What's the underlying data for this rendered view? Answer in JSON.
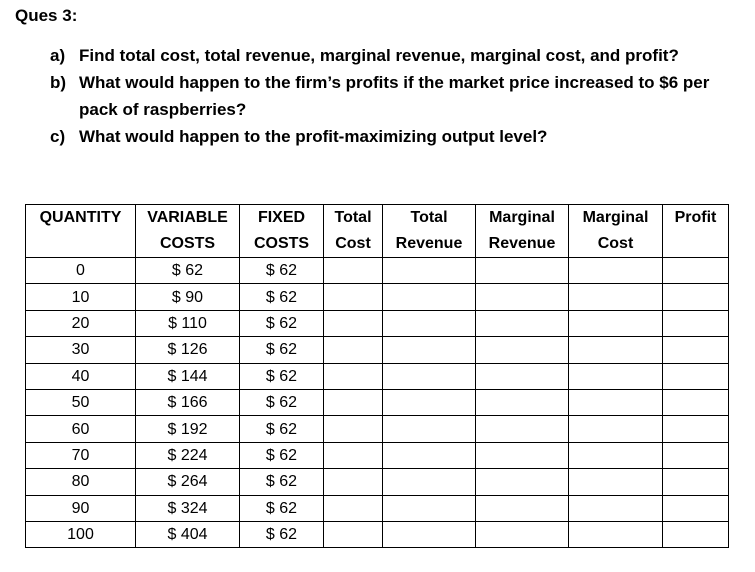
{
  "heading": "Ques 3:",
  "questions": [
    {
      "marker": "a)",
      "text": "Find total cost, total revenue, marginal revenue, marginal cost, and profit?"
    },
    {
      "marker": "b)",
      "text": "What would happen to the firm’s profits if the market price increased to $6 per pack of raspberries?"
    },
    {
      "marker": "c)",
      "text": "What would happen to the profit-maximizing output level?"
    }
  ],
  "table": {
    "headers": [
      {
        "line1": "QUANTITY",
        "line2": ""
      },
      {
        "line1": "VARIABLE",
        "line2": "COSTS"
      },
      {
        "line1": "FIXED",
        "line2": "COSTS"
      },
      {
        "line1": "Total",
        "line2": "Cost"
      },
      {
        "line1": "Total",
        "line2": "Revenue"
      },
      {
        "line1": "Marginal",
        "line2": "Revenue"
      },
      {
        "line1": "Marginal",
        "line2": "Cost"
      },
      {
        "line1": "Profit",
        "line2": ""
      }
    ],
    "rows": [
      {
        "quantity": "0",
        "variable": "$ 62",
        "fixed": "$ 62"
      },
      {
        "quantity": "10",
        "variable": "$ 90",
        "fixed": "$ 62"
      },
      {
        "quantity": "20",
        "variable": "$ 110",
        "fixed": "$ 62"
      },
      {
        "quantity": "30",
        "variable": "$ 126",
        "fixed": "$ 62"
      },
      {
        "quantity": "40",
        "variable": "$ 144",
        "fixed": "$ 62"
      },
      {
        "quantity": "50",
        "variable": "$ 166",
        "fixed": "$ 62"
      },
      {
        "quantity": "60",
        "variable": "$ 192",
        "fixed": "$ 62"
      },
      {
        "quantity": "70",
        "variable": "$ 224",
        "fixed": "$ 62"
      },
      {
        "quantity": "80",
        "variable": "$ 264",
        "fixed": "$ 62"
      },
      {
        "quantity": "90",
        "variable": "$ 324",
        "fixed": "$ 62"
      },
      {
        "quantity": "100",
        "variable": "$ 404",
        "fixed": "$ 62"
      }
    ]
  }
}
